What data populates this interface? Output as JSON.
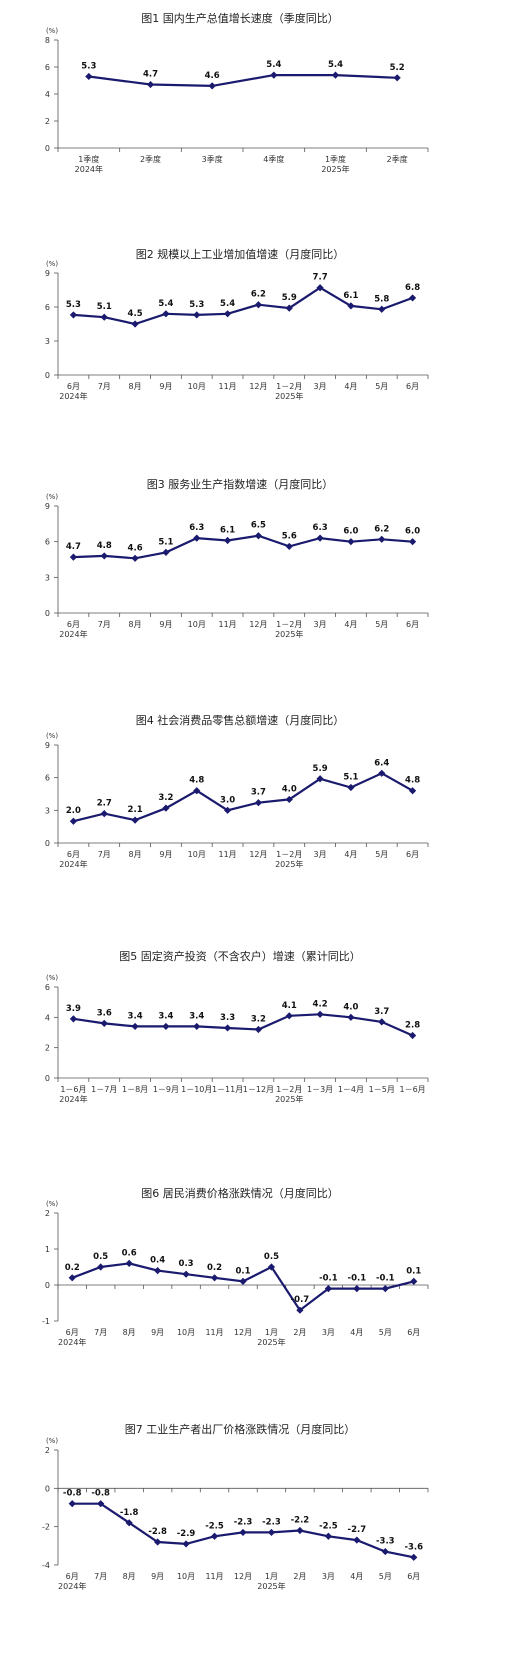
{
  "chart_data": [
    {
      "type": "line",
      "title": "图1    国内生产总值增长速度（季度同比）",
      "unit": "(%)",
      "ylim": [
        0,
        8
      ],
      "yticks": [
        0,
        2,
        4,
        6,
        8
      ],
      "categories": [
        "1季度",
        "2季度",
        "3季度",
        "4季度",
        "1季度",
        "2季度"
      ],
      "year_labels": [
        {
          "index": 0,
          "text": "2024年"
        },
        {
          "index": 4,
          "text": "2025年"
        }
      ],
      "values": [
        5.3,
        4.7,
        4.6,
        5.4,
        5.4,
        5.2
      ],
      "labels": [
        "5.3",
        "4.7",
        "4.6",
        "5.4",
        "5.4",
        "5.2"
      ]
    },
    {
      "type": "line",
      "title": "图2    规模以上工业增加值增速（月度同比）",
      "unit": "(%)",
      "ylim": [
        0,
        9
      ],
      "yticks": [
        0,
        3,
        6,
        9
      ],
      "categories": [
        "6月",
        "7月",
        "8月",
        "9月",
        "10月",
        "11月",
        "12月",
        "1－2月",
        "3月",
        "4月",
        "5月",
        "6月"
      ],
      "year_labels": [
        {
          "index": 0,
          "text": "2024年"
        },
        {
          "index": 7,
          "text": "2025年"
        }
      ],
      "values": [
        5.3,
        5.1,
        4.5,
        5.4,
        5.3,
        5.4,
        6.2,
        5.9,
        7.7,
        6.1,
        5.8,
        6.8
      ],
      "labels": [
        "5.3",
        "5.1",
        "4.5",
        "5.4",
        "5.3",
        "5.4",
        "6.2",
        "5.9",
        "7.7",
        "6.1",
        "5.8",
        "6.8"
      ]
    },
    {
      "type": "line",
      "title": "图3    服务业生产指数增速（月度同比）",
      "unit": "(%)",
      "ylim": [
        0,
        9
      ],
      "yticks": [
        0,
        3,
        6,
        9
      ],
      "categories": [
        "6月",
        "7月",
        "8月",
        "9月",
        "10月",
        "11月",
        "12月",
        "1－2月",
        "3月",
        "4月",
        "5月",
        "6月"
      ],
      "year_labels": [
        {
          "index": 0,
          "text": "2024年"
        },
        {
          "index": 7,
          "text": "2025年"
        }
      ],
      "values": [
        4.7,
        4.8,
        4.6,
        5.1,
        6.3,
        6.1,
        6.5,
        5.6,
        6.3,
        6.0,
        6.2,
        6.0
      ],
      "labels": [
        "4.7",
        "4.8",
        "4.6",
        "5.1",
        "6.3",
        "6.1",
        "6.5",
        "5.6",
        "6.3",
        "6.0",
        "6.2",
        "6.0"
      ]
    },
    {
      "type": "line",
      "title": "图4    社会消费品零售总额增速（月度同比）",
      "unit": "(%)",
      "ylim": [
        0,
        9
      ],
      "yticks": [
        0,
        3,
        6,
        9
      ],
      "categories": [
        "6月",
        "7月",
        "8月",
        "9月",
        "10月",
        "11月",
        "12月",
        "1－2月",
        "3月",
        "4月",
        "5月",
        "6月"
      ],
      "year_labels": [
        {
          "index": 0,
          "text": "2024年"
        },
        {
          "index": 7,
          "text": "2025年"
        }
      ],
      "values": [
        2.0,
        2.7,
        2.1,
        3.2,
        4.8,
        3.0,
        3.7,
        4.0,
        5.9,
        5.1,
        6.4,
        4.8
      ],
      "labels": [
        "2.0",
        "2.7",
        "2.1",
        "3.2",
        "4.8",
        "3.0",
        "3.7",
        "4.0",
        "5.9",
        "5.1",
        "6.4",
        "4.8"
      ]
    },
    {
      "type": "line",
      "title": "图5    固定资产投资（不含农户）增速（累计同比）",
      "unit": "(%)",
      "ylim": [
        0,
        6
      ],
      "yticks": [
        0,
        2,
        4,
        6
      ],
      "categories": [
        "1－6月",
        "1－7月",
        "1－8月",
        "1－9月",
        "1－10月",
        "1－11月",
        "1－12月",
        "1－2月",
        "1－3月",
        "1－4月",
        "1－5月",
        "1－6月"
      ],
      "year_labels": [
        {
          "index": 0,
          "text": "2024年"
        },
        {
          "index": 7,
          "text": "2025年"
        }
      ],
      "values": [
        3.9,
        3.6,
        3.4,
        3.4,
        3.4,
        3.3,
        3.2,
        4.1,
        4.2,
        4.0,
        3.7,
        2.8
      ],
      "labels": [
        "3.9",
        "3.6",
        "3.4",
        "3.4",
        "3.4",
        "3.3",
        "3.2",
        "4.1",
        "4.2",
        "4.0",
        "3.7",
        "2.8"
      ]
    },
    {
      "type": "line",
      "title": "图6    居民消费价格涨跌情况（月度同比）",
      "unit": "(%)",
      "ylim": [
        -1,
        2
      ],
      "yticks": [
        -1,
        0,
        1,
        2
      ],
      "categories": [
        "6月",
        "7月",
        "8月",
        "9月",
        "10月",
        "11月",
        "12月",
        "1月",
        "2月",
        "3月",
        "4月",
        "5月",
        "6月"
      ],
      "year_labels": [
        {
          "index": 0,
          "text": "2024年"
        },
        {
          "index": 7,
          "text": "2025年"
        }
      ],
      "values": [
        0.2,
        0.5,
        0.6,
        0.4,
        0.3,
        0.2,
        0.1,
        0.5,
        -0.7,
        -0.1,
        -0.1,
        -0.1,
        0.1
      ],
      "labels": [
        "0.2",
        "0.5",
        "0.6",
        "0.4",
        "0.3",
        "0.2",
        "0.1",
        "0.5",
        "-0.7",
        "-0.1",
        "-0.1",
        "-0.1",
        "0.1"
      ]
    },
    {
      "type": "line",
      "title": "图7    工业生产者出厂价格涨跌情况（月度同比）",
      "unit": "(%)",
      "ylim": [
        -4,
        2
      ],
      "yticks": [
        -4,
        -2,
        0,
        2
      ],
      "categories": [
        "6月",
        "7月",
        "8月",
        "9月",
        "10月",
        "11月",
        "12月",
        "1月",
        "2月",
        "3月",
        "4月",
        "5月",
        "6月"
      ],
      "year_labels": [
        {
          "index": 0,
          "text": "2024年"
        },
        {
          "index": 7,
          "text": "2025年"
        }
      ],
      "values": [
        -0.8,
        -0.8,
        -1.8,
        -2.8,
        -2.9,
        -2.5,
        -2.3,
        -2.3,
        -2.2,
        -2.5,
        -2.7,
        -3.3,
        -3.6
      ],
      "labels": [
        "-0.8",
        "-0.8",
        "-1.8",
        "-2.8",
        "-2.9",
        "-2.5",
        "-2.3",
        "-2.3",
        "-2.2",
        "-2.5",
        "-2.7",
        "-3.3",
        "-3.6"
      ]
    }
  ]
}
